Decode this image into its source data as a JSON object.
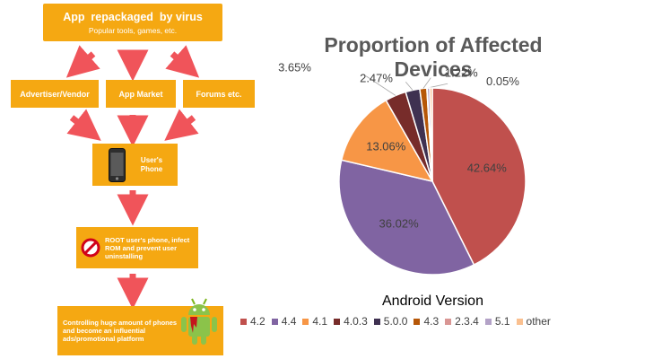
{
  "flow": {
    "top_title": "App  repackaged  by virus",
    "top_sub": "Popular tools, games, etc.",
    "vendor": "Advertiser/Vendor",
    "market": "App Market",
    "forums": "Forums etc.",
    "phone": "User's Phone",
    "root": "ROOT user's phone, infect ROM and prevent user uninstalling",
    "control": "Controlling huge amount of phones and become an influential ads/promotional platform"
  },
  "chart_data": {
    "type": "pie",
    "title": "Proportion of Affected Devices",
    "legend_title": "Android Version",
    "legend_position": "bottom",
    "slices": [
      {
        "name": "4.2",
        "value": 42.64,
        "label": "42.64%",
        "color": "#c0504d"
      },
      {
        "name": "4.4",
        "value": 36.02,
        "label": "36.02%",
        "color": "#8064a2"
      },
      {
        "name": "4.1",
        "value": 13.06,
        "label": "13.06%",
        "color": "#f79646"
      },
      {
        "name": "4.0.3",
        "value": 3.65,
        "label": "3.65%",
        "color": "#772c2a"
      },
      {
        "name": "5.0.0",
        "value": 2.47,
        "label": "2.47%",
        "color": "#3f3151"
      },
      {
        "name": "4.3",
        "value": 1.22,
        "label": "1.22%",
        "color": "#b65708"
      },
      {
        "name": "2.3.4",
        "value": 0.05,
        "label": "0.05%",
        "color": "#d99694"
      },
      {
        "name": "5.1",
        "value": 0.45,
        "label": "",
        "color": "#b3a2c7"
      },
      {
        "name": "other",
        "value": 0.44,
        "label": "",
        "color": "#fac090"
      }
    ]
  }
}
